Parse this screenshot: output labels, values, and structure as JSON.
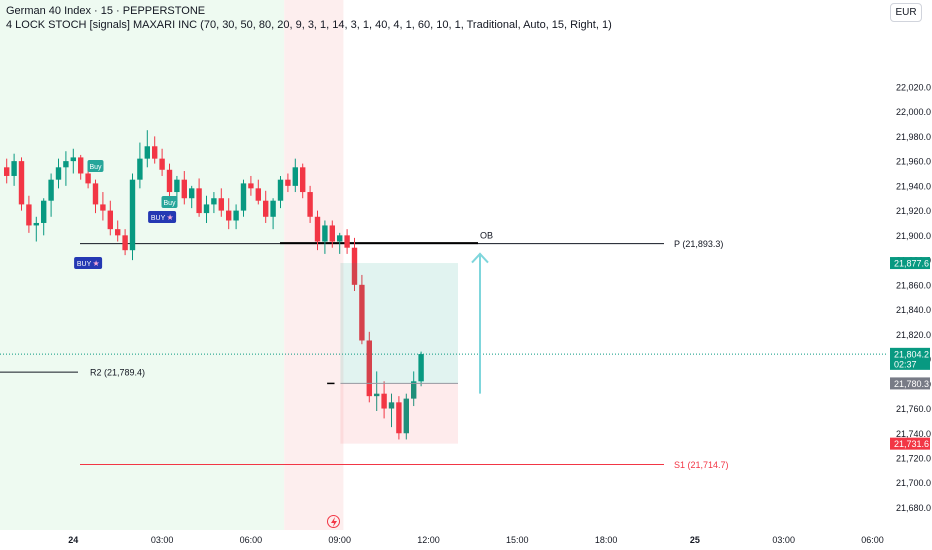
{
  "header": {
    "title": "German 40 Index · 15 · PEPPERSTONE",
    "indicator": "4 LOCK STOCH [signals] MAXARI INC (70, 30, 50, 80, 20, 9, 3, 1, 14, 3, 1, 40, 4, 1, 60, 10, 1, Traditional, Auto, 15, Right, 1)",
    "currency": "EUR"
  },
  "chart_data": {
    "type": "candlestick",
    "symbol": "German 40 Index",
    "interval": "15",
    "broker": "PEPPERSTONE",
    "ylim": [
      21672,
      22032
    ],
    "y_ticks": [
      "22,020.0",
      "22,000.0",
      "21,980.0",
      "21,960.0",
      "21,940.0",
      "21,920.0",
      "21,900.0",
      "21,880.0",
      "21,860.0",
      "21,840.0",
      "21,820.0",
      "21,800.0",
      "21,780.0",
      "21,760.0",
      "21,740.0",
      "21,720.0",
      "21,700.0",
      "21,680.0"
    ],
    "x_ticks": [
      {
        "label": "24",
        "bar": 9,
        "bold": true
      },
      {
        "label": "03:00",
        "bar": 21
      },
      {
        "label": "06:00",
        "bar": 33
      },
      {
        "label": "09:00",
        "bar": 45
      },
      {
        "label": "12:00",
        "bar": 57
      },
      {
        "label": "15:00",
        "bar": 69
      },
      {
        "label": "18:00",
        "bar": 81
      },
      {
        "label": "25",
        "bar": 93,
        "bold": true
      },
      {
        "label": "03:00",
        "bar": 105
      },
      {
        "label": "06:00",
        "bar": 117
      }
    ],
    "candles": [
      [
        21955,
        21962,
        21942,
        21948
      ],
      [
        21948,
        21966,
        21940,
        21960
      ],
      [
        21960,
        21963,
        21920,
        21925
      ],
      [
        21925,
        21932,
        21902,
        21908
      ],
      [
        21908,
        21915,
        21895,
        21910
      ],
      [
        21910,
        21930,
        21900,
        21928
      ],
      [
        21928,
        21950,
        21915,
        21945
      ],
      [
        21945,
        21962,
        21938,
        21955
      ],
      [
        21955,
        21968,
        21940,
        21960
      ],
      [
        21960,
        21970,
        21950,
        21963
      ],
      [
        21963,
        21965,
        21945,
        21950
      ],
      [
        21950,
        21958,
        21938,
        21942
      ],
      [
        21942,
        21945,
        21918,
        21925
      ],
      [
        21925,
        21935,
        21912,
        21920
      ],
      [
        21920,
        21928,
        21900,
        21905
      ],
      [
        21905,
        21912,
        21895,
        21900
      ],
      [
        21900,
        21905,
        21884,
        21888
      ],
      [
        21888,
        21950,
        21880,
        21945
      ],
      [
        21945,
        21975,
        21938,
        21962
      ],
      [
        21962,
        21985,
        21955,
        21972
      ],
      [
        21972,
        21980,
        21958,
        21962
      ],
      [
        21962,
        21970,
        21948,
        21953
      ],
      [
        21953,
        21958,
        21930,
        21935
      ],
      [
        21935,
        21948,
        21928,
        21945
      ],
      [
        21945,
        21952,
        21925,
        21930
      ],
      [
        21930,
        21940,
        21922,
        21938
      ],
      [
        21938,
        21946,
        21915,
        21918
      ],
      [
        21918,
        21932,
        21910,
        21925
      ],
      [
        21925,
        21935,
        21918,
        21930
      ],
      [
        21930,
        21938,
        21915,
        21920
      ],
      [
        21920,
        21930,
        21905,
        21912
      ],
      [
        21912,
        21925,
        21905,
        21920
      ],
      [
        21920,
        21945,
        21915,
        21942
      ],
      [
        21942,
        21948,
        21932,
        21938
      ],
      [
        21938,
        21945,
        21925,
        21928
      ],
      [
        21928,
        21936,
        21910,
        21915
      ],
      [
        21915,
        21930,
        21905,
        21928
      ],
      [
        21928,
        21948,
        21922,
        21945
      ],
      [
        21945,
        21950,
        21935,
        21940
      ],
      [
        21940,
        21962,
        21935,
        21955
      ],
      [
        21955,
        21958,
        21930,
        21935
      ],
      [
        21935,
        21940,
        21910,
        21915
      ],
      [
        21915,
        21920,
        21888,
        21895
      ],
      [
        21895,
        21912,
        21885,
        21908
      ],
      [
        21908,
        21912,
        21890,
        21895
      ],
      [
        21895,
        21902,
        21885,
        21900
      ],
      [
        21900,
        21905,
        21885,
        21890
      ],
      [
        21890,
        21898,
        21855,
        21860
      ],
      [
        21860,
        21868,
        21812,
        21815
      ],
      [
        21815,
        21822,
        21765,
        21770
      ],
      [
        21770,
        21790,
        21758,
        21772
      ],
      [
        21772,
        21782,
        21752,
        21760
      ],
      [
        21760,
        21772,
        21745,
        21765
      ],
      [
        21765,
        21770,
        21735,
        21740
      ],
      [
        21740,
        21772,
        21735,
        21768
      ],
      [
        21768,
        21790,
        21762,
        21782
      ],
      [
        21782,
        21806,
        21778,
        21804
      ]
    ],
    "levels": [
      {
        "label": "P (21,893.3)",
        "value": 21893.3,
        "color": "#131722"
      },
      {
        "label": "R2 (21,789.4)",
        "value": 21789.4,
        "color": "#131722"
      },
      {
        "label": "S1 (21,714.7)",
        "value": 21714.7,
        "color": "#f23645"
      }
    ],
    "signals": [
      {
        "label": "Buy",
        "bar": 12,
        "color": "#26a69a"
      },
      {
        "label": "Buy",
        "bar": 22,
        "color": "#26a69a"
      },
      {
        "label": "BUY",
        "bar": 21,
        "color": "#2438b3",
        "star": true
      },
      {
        "label": "BUY",
        "bar": 11,
        "color": "#2438b3",
        "star": true
      }
    ],
    "annotation": "OB",
    "position": {
      "entry": 21780.3,
      "target": 21877.6,
      "stop": 21731.6
    },
    "price_labels": [
      {
        "text": "21,877.6",
        "value": 21877.6,
        "bg": "#089981"
      },
      {
        "text": "21,804.2",
        "sub": "02:37",
        "value": 21804.2,
        "bg": "#089981"
      },
      {
        "text": "21,780.3",
        "value": 21780.3,
        "bg": "#787b86"
      },
      {
        "text": "21,731.6",
        "value": 21731.6,
        "bg": "#f23645"
      }
    ],
    "colors": {
      "up": "#089981",
      "down": "#f23645"
    }
  }
}
